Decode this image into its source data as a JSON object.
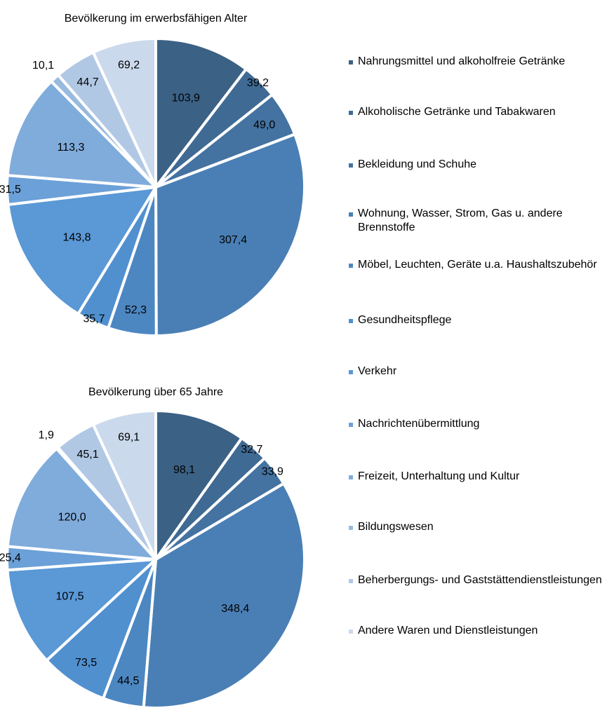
{
  "chart_data": [
    {
      "type": "pie",
      "title": "Bevölkerung im erwerbsfähigen Alter",
      "categories": [
        "Nahrungsmittel und alkoholfreie Getränke",
        "Alkoholische Getränke und Tabakwaren",
        "Bekleidung und Schuhe",
        "Wohnung, Wasser, Strom, Gas u. andere Brennstoffe",
        "Möbel, Leuchten, Geräte u.a. Haushaltszubehör",
        "Gesundheitspflege",
        "Verkehr",
        "Nachrichtenübermittlung",
        "Freizeit, Unterhaltung und Kultur",
        "Bildungswesen",
        "Beherbergungs- und Gaststättendienstleistungen",
        "Andere Waren und Dienstleistungen"
      ],
      "colors": [
        "#3b6185",
        "#3f6a93",
        "#4472a1",
        "#4a7fb5",
        "#4c87c2",
        "#5190cf",
        "#5a98d6",
        "#6ba0d8",
        "#80acdc",
        "#98bade",
        "#b1c8e5",
        "#cbd9ec"
      ],
      "values": [
        103.9,
        39.2,
        49.0,
        307.4,
        52.3,
        35.7,
        143.8,
        31.5,
        113.3,
        10.1,
        44.7,
        69.2
      ],
      "value_labels": [
        "103,9",
        "39,2",
        "49,0",
        "307,4",
        "52,3",
        "35,7",
        "143,8",
        "31,5",
        "113,3",
        "10,1",
        "44,7",
        "69,2"
      ]
    },
    {
      "type": "pie",
      "title": "Bevölkerung über 65 Jahre",
      "values": [
        98.1,
        32.7,
        33.9,
        348.4,
        44.5,
        73.5,
        107.5,
        25.4,
        120.0,
        1.9,
        45.1,
        69.1
      ],
      "value_labels": [
        "98,1",
        "32,7",
        "33,9",
        "348,4",
        "44,5",
        "73,5",
        "107,5",
        "25,4",
        "120,0",
        "1,9",
        "45,1",
        "69,1"
      ]
    }
  ]
}
